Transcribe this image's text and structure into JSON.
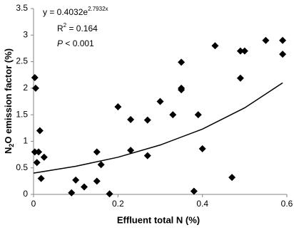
{
  "chart_data": {
    "type": "scatter",
    "x_label": "Effluent total N (%)",
    "y_label": {
      "main": "N",
      "sub": "2",
      "rest": "O emission factor (%)"
    },
    "annotation": {
      "eq_main": "y = 0.4032e",
      "eq_sup": "2.7932x",
      "r_main": "R",
      "r_sup": "2",
      "r_rest": " = 0.164",
      "p_main": "P",
      "p_rest": " < 0.001"
    },
    "xlim": [
      0,
      0.6
    ],
    "xticks": [
      0,
      0.2,
      0.4,
      0.6
    ],
    "ylim": [
      0,
      3.5
    ],
    "yticks": [
      0,
      0.5,
      1,
      1.5,
      2,
      2.5,
      3,
      3.5
    ],
    "grid": false,
    "series": [
      {
        "type": "scatter",
        "color": "#000000",
        "x": [
          0.003,
          0.005,
          0.003,
          0.008,
          0.012,
          0.015,
          0.018,
          0.025,
          0.09,
          0.1,
          0.12,
          0.15,
          0.15,
          0.16,
          0.18,
          0.2,
          0.23,
          0.23,
          0.27,
          0.27,
          0.3,
          0.33,
          0.35,
          0.35,
          0.35,
          0.38,
          0.39,
          0.4,
          0.43,
          0.47,
          0.49,
          0.49,
          0.5,
          0.55,
          0.59,
          0.59
        ],
        "values": [
          2.2,
          2.0,
          0.8,
          0.6,
          0.8,
          1.2,
          0.3,
          0.7,
          0.03,
          0.27,
          0.14,
          0.8,
          0.25,
          0.56,
          0.01,
          1.65,
          1.41,
          0.83,
          1.4,
          0.73,
          1.75,
          1.5,
          2.0,
          1.97,
          2.49,
          0.06,
          1.5,
          0.86,
          2.8,
          0.32,
          2.7,
          2.19,
          2.7,
          2.9,
          2.9,
          2.64
        ]
      },
      {
        "type": "line",
        "color": "#000000",
        "x": [
          0,
          0.1,
          0.2,
          0.3,
          0.4,
          0.5,
          0.59
        ],
        "values": [
          0.4,
          0.53,
          0.7,
          0.93,
          1.23,
          1.63,
          2.1
        ]
      }
    ]
  }
}
